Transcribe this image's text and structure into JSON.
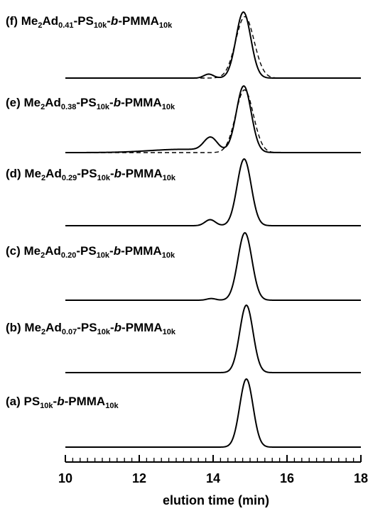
{
  "chart_data": {
    "type": "line",
    "xlabel": "elution time (min)",
    "xlim": [
      10,
      18
    ],
    "x_ticks": [
      "10",
      "12",
      "14",
      "16",
      "18"
    ],
    "minor_tick_step": 0.2,
    "grid": false,
    "series": [
      {
        "name": "(f) Me2Ad0.41-PS10k-b-PMMA10k",
        "label": {
          "prefix": "(f) Me",
          "s1": "2",
          "mid1": "Ad",
          "s2": "0.41",
          "mid2": "-PS",
          "s3": "10k",
          "dash1": "-",
          "ital": "b",
          "dash2": "-PMMA",
          "s4": "10k"
        },
        "peaks": [
          {
            "t": 14.82,
            "sigma": 0.2,
            "h": 1.0
          },
          {
            "t": 13.88,
            "sigma": 0.13,
            "h": 0.06
          }
        ],
        "reference_dashed": true,
        "dashed_peak": {
          "t": 14.86,
          "sigma": 0.25,
          "h": 0.93
        }
      },
      {
        "name": "(e) Me2Ad0.38-PS10k-b-PMMA10k",
        "label": {
          "prefix": "(e) Me",
          "s1": "2",
          "mid1": "Ad",
          "s2": "0.38",
          "mid2": "-PS",
          "s3": "10k",
          "dash1": "-",
          "ital": "b",
          "dash2": "-PMMA",
          "s4": "10k"
        },
        "peaks": [
          {
            "t": 14.83,
            "sigma": 0.2,
            "h": 1.0
          },
          {
            "t": 13.93,
            "sigma": 0.18,
            "h": 0.2
          },
          {
            "t": 13.2,
            "sigma": 0.9,
            "h": 0.05
          }
        ],
        "reference_dashed": true,
        "dashed_peak": {
          "t": 14.85,
          "sigma": 0.24,
          "h": 0.95
        }
      },
      {
        "name": "(d) Me2Ad0.29-PS10k-b-PMMA10k",
        "label": {
          "prefix": "(d) Me",
          "s1": "2",
          "mid1": "Ad",
          "s2": "0.29",
          "mid2": "-PS",
          "s3": "10k",
          "dash1": "-",
          "ital": "b",
          "dash2": "-PMMA",
          "s4": "10k"
        },
        "peaks": [
          {
            "t": 14.84,
            "sigma": 0.19,
            "h": 1.0
          },
          {
            "t": 13.92,
            "sigma": 0.14,
            "h": 0.09
          }
        ],
        "reference_dashed": false
      },
      {
        "name": "(c) Me2Ad0.20-PS10k-b-PMMA10k",
        "label": {
          "prefix": "(c) Me",
          "s1": "2",
          "mid1": "Ad",
          "s2": "0.20",
          "mid2": "-PS",
          "s3": "10k",
          "dash1": "-",
          "ital": "b",
          "dash2": "-PMMA",
          "s4": "10k"
        },
        "peaks": [
          {
            "t": 14.86,
            "sigma": 0.19,
            "h": 1.0
          },
          {
            "t": 13.95,
            "sigma": 0.12,
            "h": 0.025
          }
        ],
        "reference_dashed": false
      },
      {
        "name": "(b) Me2Ad0.07-PS10k-b-PMMA10k",
        "label": {
          "prefix": "(b) Me",
          "s1": "2",
          "mid1": "Ad",
          "s2": "0.07",
          "mid2": "-PS",
          "s3": "10k",
          "dash1": "-",
          "ital": "b",
          "dash2": "-PMMA",
          "s4": "10k"
        },
        "peaks": [
          {
            "t": 14.9,
            "sigma": 0.18,
            "h": 1.0
          }
        ],
        "reference_dashed": false
      },
      {
        "name": "(a) PS10k-b-PMMA10k",
        "label": {
          "prefix": "(a) PS",
          "s1": "10k",
          "mid1": "-",
          "ital": "b",
          "mid2": "-PMMA",
          "s2": "10k"
        },
        "peaks": [
          {
            "t": 14.9,
            "sigma": 0.18,
            "h": 1.0
          }
        ],
        "reference_dashed": false
      }
    ]
  }
}
